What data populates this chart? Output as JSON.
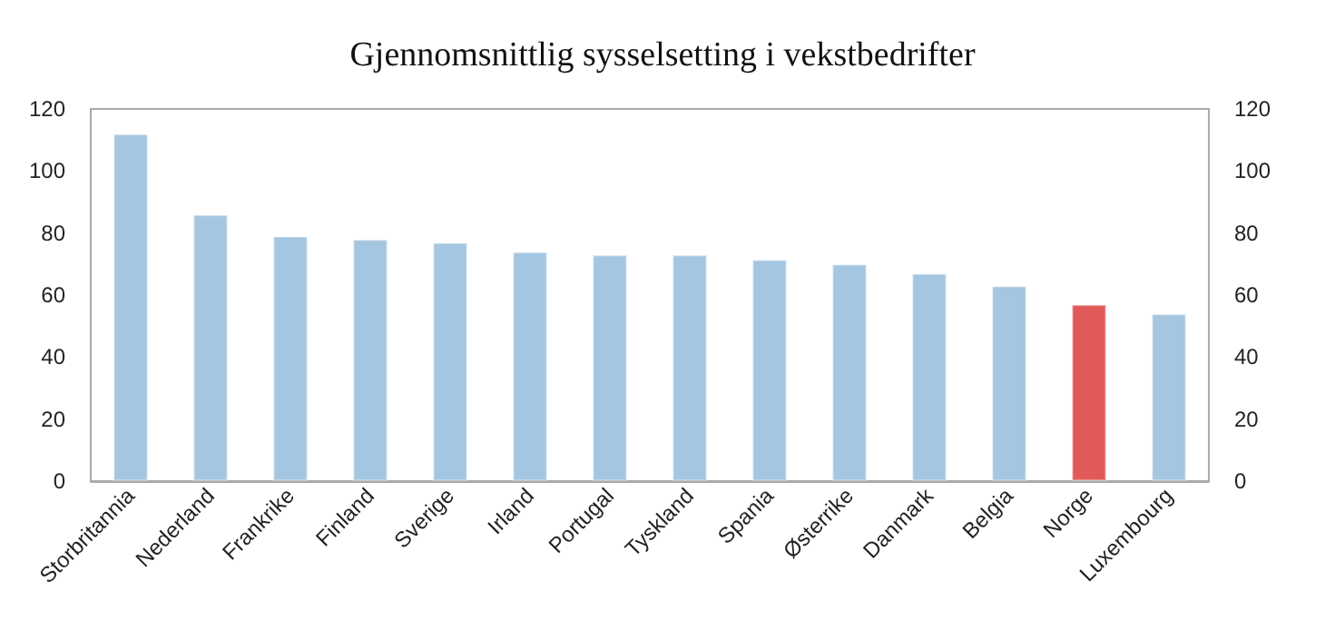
{
  "chart_data": {
    "type": "bar",
    "title": "Gjennomsnittlig sysselsetting i vekstbedrifter",
    "categories": [
      "Storbritannia",
      "Nederland",
      "Frankrike",
      "Finland",
      "Sverige",
      "Irland",
      "Portugal",
      "Tyskland",
      "Spania",
      "Østerrike",
      "Danmark",
      "Belgia",
      "Norge",
      "Luxembourg"
    ],
    "values": [
      112,
      86,
      79,
      78,
      77,
      74,
      73,
      73,
      71.5,
      70,
      67,
      63,
      57,
      54
    ],
    "colors": [
      "#a4c6e1",
      "#a4c6e1",
      "#a4c6e1",
      "#a4c6e1",
      "#a4c6e1",
      "#a4c6e1",
      "#a4c6e1",
      "#a4c6e1",
      "#a4c6e1",
      "#a4c6e1",
      "#a4c6e1",
      "#a4c6e1",
      "#e05a57",
      "#a4c6e1"
    ],
    "ylim": [
      0,
      120
    ],
    "yticks": [
      0,
      20,
      40,
      60,
      80,
      100,
      120
    ],
    "y2lim": [
      0,
      120
    ],
    "y2ticks": [
      0,
      20,
      40,
      60,
      80,
      100,
      120
    ],
    "grid": false
  }
}
